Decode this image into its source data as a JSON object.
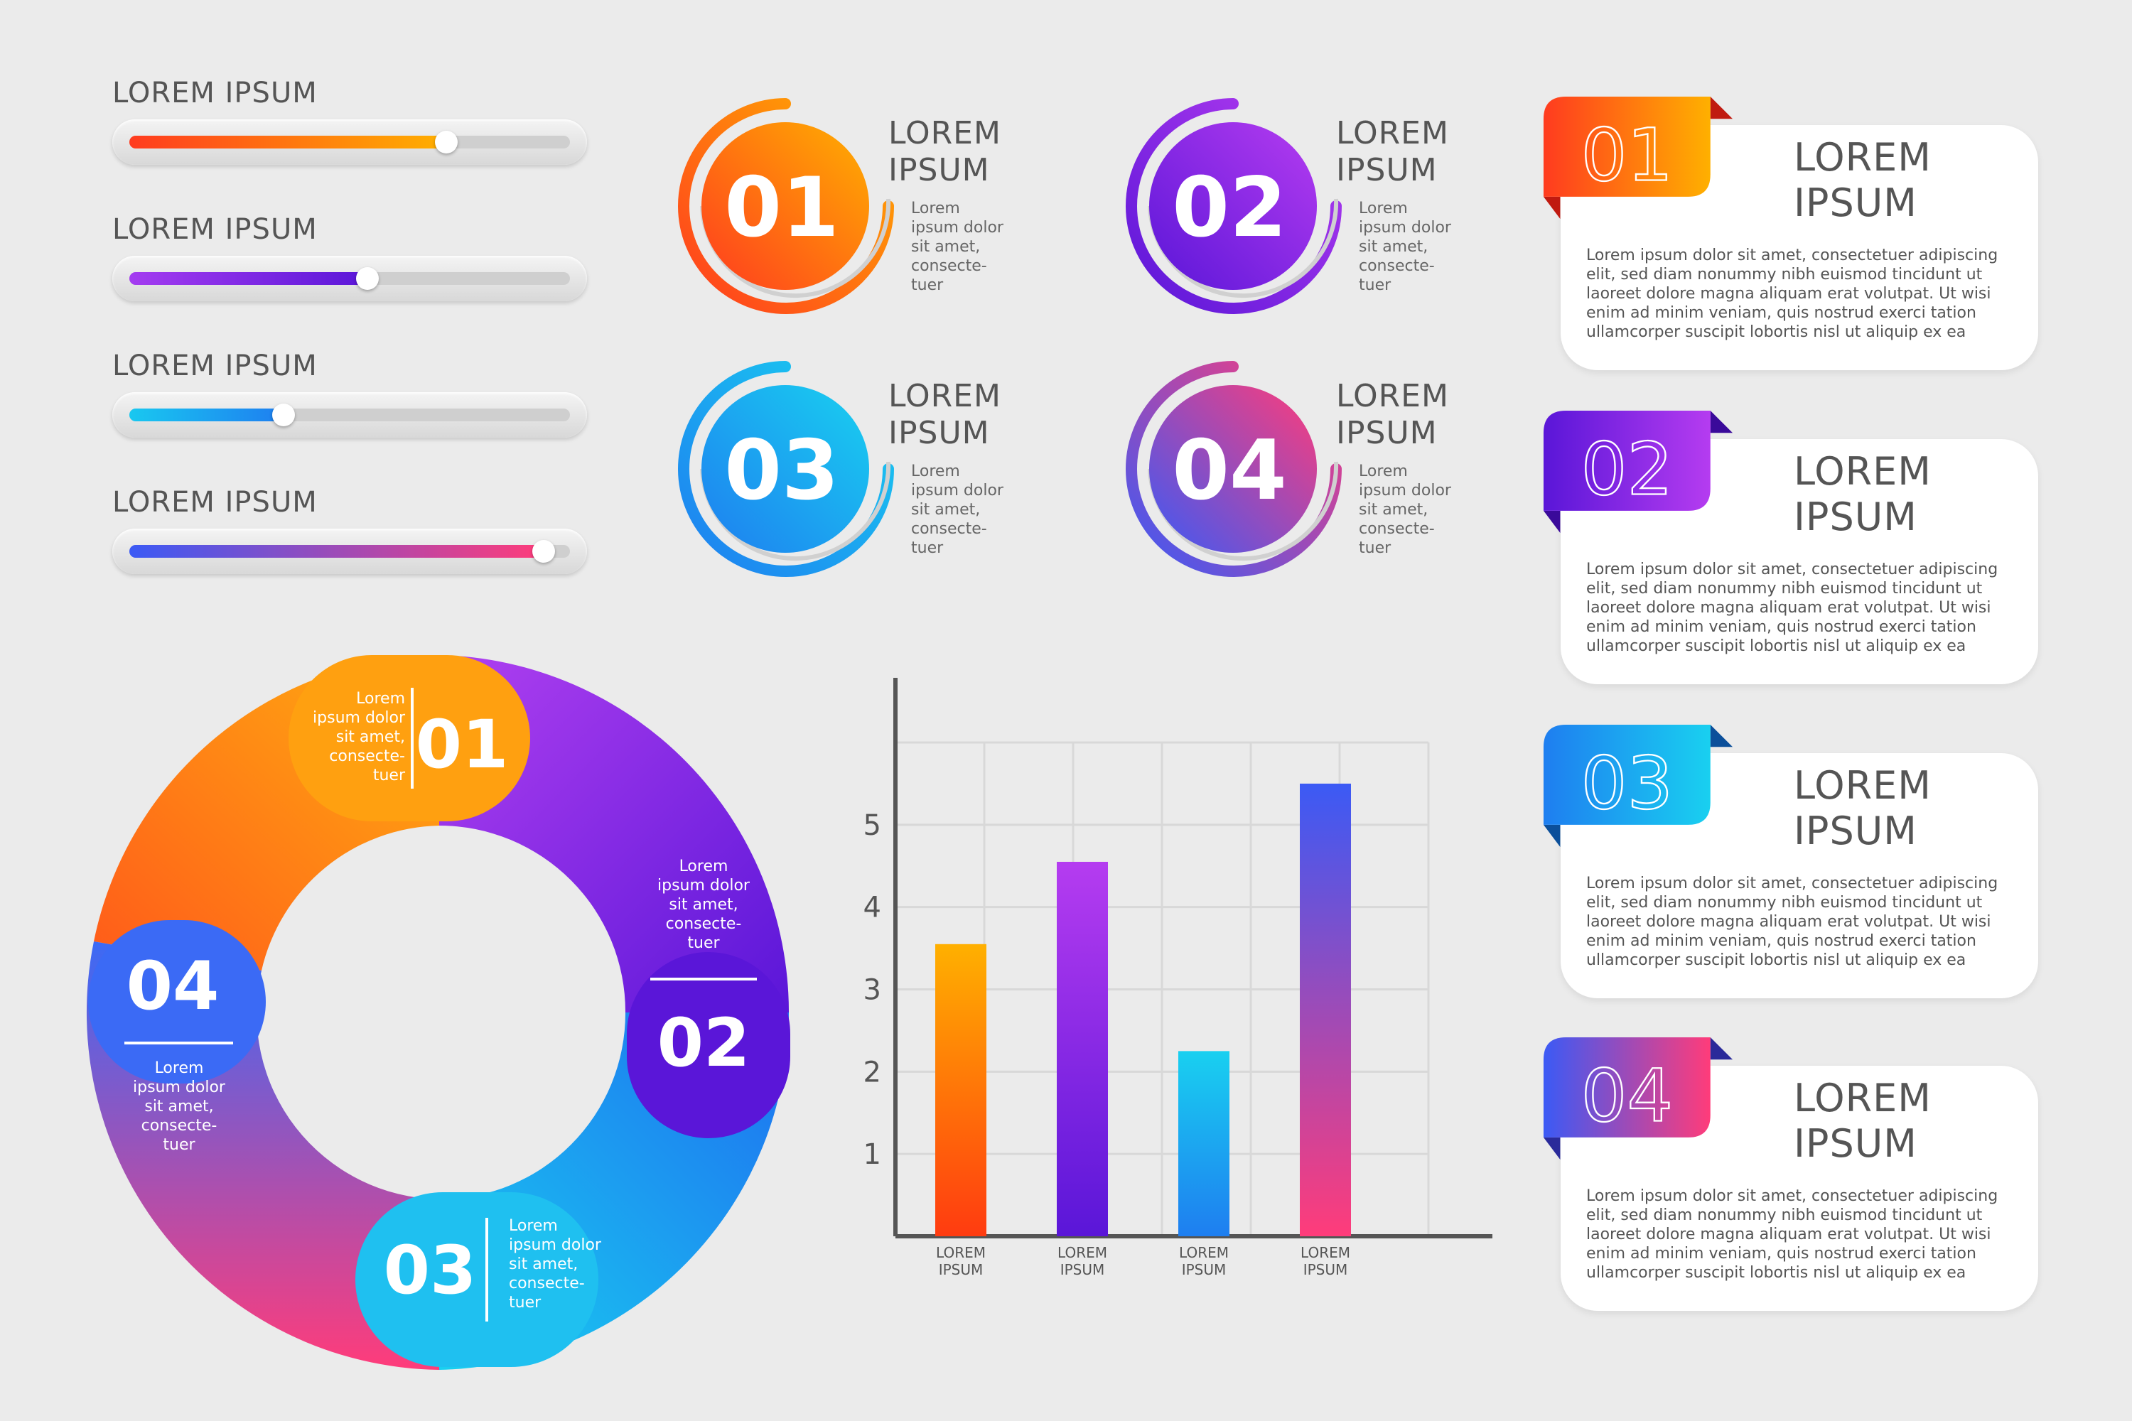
{
  "sliders": [
    {
      "label": "LOREM IPSUM",
      "value": 0.72,
      "colors": [
        "#ff3b1f",
        "#ffb000"
      ]
    },
    {
      "label": "LOREM IPSUM",
      "value": 0.54,
      "colors": [
        "#a43cf0",
        "#5a16d8"
      ]
    },
    {
      "label": "LOREM IPSUM",
      "value": 0.35,
      "colors": [
        "#19c8f0",
        "#1e7ef0"
      ]
    },
    {
      "label": "LOREM IPSUM",
      "value": 0.94,
      "colors": [
        "#3b5af5",
        "#ff3c7a"
      ]
    }
  ],
  "badges": [
    {
      "number": "01",
      "title_1": "LOREM",
      "title_2": "IPSUM",
      "desc": [
        "Lorem",
        "ipsum dolor",
        "sit amet,",
        "consecte-",
        "tuer"
      ],
      "colors": [
        "#ff3b1f",
        "#ffb000"
      ]
    },
    {
      "number": "02",
      "title_1": "LOREM",
      "title_2": "IPSUM",
      "desc": [
        "Lorem",
        "ipsum dolor",
        "sit amet,",
        "consecte-",
        "tuer"
      ],
      "colors": [
        "#5a16d8",
        "#b53cf0"
      ]
    },
    {
      "number": "03",
      "title_1": "LOREM",
      "title_2": "IPSUM",
      "desc": [
        "Lorem",
        "ipsum dolor",
        "sit amet,",
        "consecte-",
        "tuer"
      ],
      "colors": [
        "#1e7ef0",
        "#19d0f0"
      ]
    },
    {
      "number": "04",
      "title_1": "LOREM",
      "title_2": "IPSUM",
      "desc": [
        "Lorem",
        "ipsum dolor",
        "sit amet,",
        "consecte-",
        "tuer"
      ],
      "colors": [
        "#3b5af5",
        "#ff3c7a"
      ]
    }
  ],
  "cards": [
    {
      "number": "01",
      "title_1": "LOREM",
      "title_2": "IPSUM",
      "body": [
        "Lorem ipsum dolor sit amet, consectetuer adipiscing",
        "elit, sed diam nonummy nibh euismod tincidunt ut",
        "laoreet dolore magna aliquam erat volutpat. Ut wisi",
        "enim ad minim veniam, quis nostrud exerci tation",
        "ullamcorper suscipit lobortis nisl ut aliquip ex ea"
      ],
      "colors": [
        "#ff3b1f",
        "#ffb000"
      ],
      "fold": "#c01a10"
    },
    {
      "number": "02",
      "title_1": "LOREM",
      "title_2": "IPSUM",
      "body": [
        "Lorem ipsum dolor sit amet, consectetuer adipiscing",
        "elit, sed diam nonummy nibh euismod tincidunt ut",
        "laoreet dolore magna aliquam erat volutpat. Ut wisi",
        "enim ad minim veniam, quis nostrud exerci tation",
        "ullamcorper suscipit lobortis nisl ut aliquip ex ea"
      ],
      "colors": [
        "#5a16d8",
        "#b53cf0"
      ],
      "fold": "#3a0a9a"
    },
    {
      "number": "03",
      "title_1": "LOREM",
      "title_2": "IPSUM",
      "body": [
        "Lorem ipsum dolor sit amet, consectetuer adipiscing",
        "elit, sed diam nonummy nibh euismod tincidunt ut",
        "laoreet dolore magna aliquam erat volutpat. Ut wisi",
        "enim ad minim veniam, quis nostrud exerci tation",
        "ullamcorper suscipit lobortis nisl ut aliquip ex ea"
      ],
      "colors": [
        "#1e7ef0",
        "#19d0f0"
      ],
      "fold": "#0b4f9a"
    },
    {
      "number": "04",
      "title_1": "LOREM",
      "title_2": "IPSUM",
      "body": [
        "Lorem ipsum dolor sit amet, consectetuer adipiscing",
        "elit, sed diam nonummy nibh euismod tincidunt ut",
        "laoreet dolore magna aliquam erat volutpat. Ut wisi",
        "enim ad minim veniam, quis nostrud exerci tation",
        "ullamcorper suscipit lobortis nisl ut aliquip ex ea"
      ],
      "colors": [
        "#3b5af5",
        "#ff3c7a"
      ],
      "fold": "#2a2a9a"
    }
  ],
  "donut": [
    {
      "number": "01",
      "text": [
        "Lorem",
        "ipsum dolor",
        "sit amet,",
        "consecte-",
        "tuer"
      ]
    },
    {
      "number": "02",
      "text": [
        "Lorem",
        "ipsum dolor",
        "sit amet,",
        "consecte-",
        "tuer"
      ]
    },
    {
      "number": "03",
      "text": [
        "Lorem",
        "ipsum dolor",
        "sit amet,",
        "consecte-",
        "tuer"
      ]
    },
    {
      "number": "04",
      "text": [
        "Lorem",
        "ipsum dolor",
        "sit amet,",
        "consecte-",
        "tuer"
      ]
    }
  ],
  "chart_data": {
    "type": "bar",
    "categories": [
      "LOREM\nIPSUM",
      "LOREM\nIPSUM",
      "LOREM\nIPSUM",
      "LOREM\nIPSUM"
    ],
    "values": [
      3.55,
      4.55,
      2.25,
      5.5
    ],
    "yticks": [
      1,
      2,
      3,
      4,
      5
    ],
    "ylim": [
      0,
      6
    ],
    "grid": true,
    "bar_colors": [
      [
        "#ff3b10",
        "#ffb000"
      ],
      [
        "#5a16d8",
        "#b53cf0"
      ],
      [
        "#1e7ef0",
        "#19d0f0"
      ],
      [
        "#ff3c7a",
        "#3b5af5"
      ]
    ]
  }
}
